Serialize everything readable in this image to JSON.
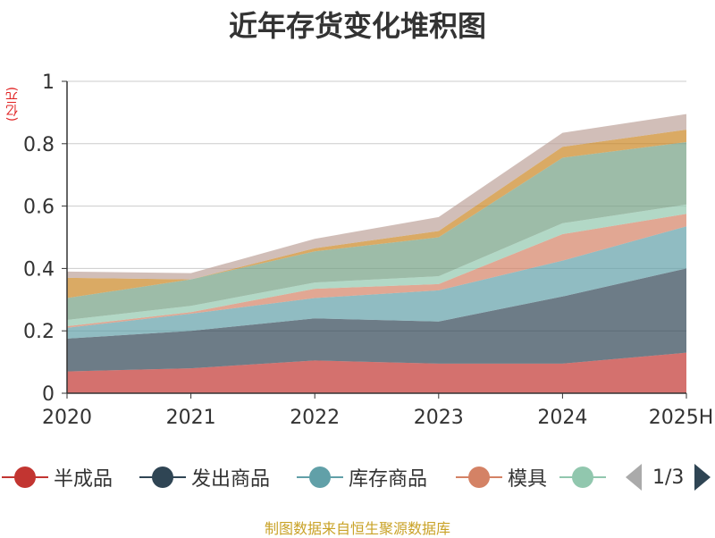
{
  "chart_data": {
    "type": "area",
    "stacked": true,
    "title": "近年存货变化堆积图",
    "unit_label": "(亿元)",
    "x": [
      "2020",
      "2021",
      "2022",
      "2023",
      "2024",
      "2025H"
    ],
    "ylim": [
      0,
      1
    ],
    "yticks": [
      "0",
      "0.2",
      "0.4",
      "0.6",
      "0.8",
      "1"
    ],
    "ytick_values": [
      0,
      0.2,
      0.4,
      0.6,
      0.8,
      1
    ],
    "grid": true,
    "series": [
      {
        "name": "半成品",
        "color": "#c23531",
        "values": [
          0.07,
          0.08,
          0.105,
          0.095,
          0.095,
          0.13
        ]
      },
      {
        "name": "发出商品",
        "color": "#2f4554",
        "values": [
          0.105,
          0.12,
          0.135,
          0.135,
          0.215,
          0.27
        ]
      },
      {
        "name": "库存商品",
        "color": "#61a0a8",
        "values": [
          0.035,
          0.055,
          0.065,
          0.1,
          0.115,
          0.135
        ]
      },
      {
        "color": "#d48265",
        "values": [
          0.005,
          0.005,
          0.03,
          0.02,
          0.085,
          0.04
        ]
      },
      {
        "color": "#91c7ae",
        "values": [
          0.02,
          0.02,
          0.02,
          0.025,
          0.035,
          0.03
        ]
      },
      {
        "color": "#749f83",
        "values": [
          0.07,
          0.085,
          0.1,
          0.125,
          0.21,
          0.2
        ]
      },
      {
        "color": "#ca8622",
        "values": [
          0.065,
          0.0,
          0.01,
          0.02,
          0.035,
          0.04
        ]
      },
      {
        "color": "#bda29a",
        "values": [
          0.02,
          0.02,
          0.03,
          0.045,
          0.045,
          0.05
        ]
      }
    ],
    "legend": {
      "position": "bottom",
      "page": "1/3"
    }
  },
  "legend_items": [
    {
      "label": "半成品",
      "color": "#c23531"
    },
    {
      "label": "发出商品",
      "color": "#2f4554"
    },
    {
      "label": "库存商品",
      "color": "#61a0a8"
    },
    {
      "label": "模具",
      "color": "#d48265"
    },
    {
      "label": "",
      "color": "#91c7ae"
    }
  ],
  "legend_page": "1/3",
  "source": "制图数据来自恒生聚源数据库"
}
